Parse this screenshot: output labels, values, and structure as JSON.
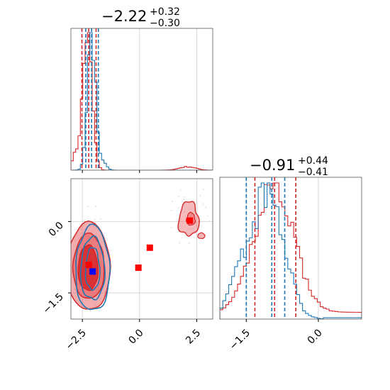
{
  "chart_data": {
    "type": "corner",
    "grid": true,
    "colors": {
      "red": "#d62728",
      "blue": "#1f77b4",
      "red_fill": "#e8686a",
      "marker_red": "#ff0000",
      "marker_blue": "#0000ff"
    },
    "params": [
      {
        "title_value": "−2.22",
        "title_plus": "+0.32",
        "title_minus": "−0.30",
        "range": [
          -3.0,
          3.2
        ]
      },
      {
        "title_value": "−0.91",
        "title_plus": "+0.44",
        "title_minus": "−0.41",
        "range": [
          -2.05,
          0.9
        ]
      }
    ],
    "x_ticks_p1": [
      {
        "v": -2.5,
        "label": "−2.5"
      },
      {
        "v": 0.0,
        "label": "0.0"
      },
      {
        "v": 2.5,
        "label": "2.5"
      }
    ],
    "y_ticks_p2": [
      {
        "v": 0.0,
        "label": "0.0"
      },
      {
        "v": -1.5,
        "label": "−1.5"
      }
    ],
    "x_ticks_p2": [
      {
        "v": -1.5,
        "label": "−1.5"
      },
      {
        "v": 0.0,
        "label": "0.0"
      }
    ],
    "hist1": {
      "red": {
        "median": -2.22,
        "lo": -2.52,
        "hi": -1.9
      },
      "blue": {
        "median": -2.22,
        "lo": -2.35,
        "hi": -1.8
      }
    },
    "hist2": {
      "red": {
        "median": -0.91,
        "lo": -1.32,
        "hi": -0.47
      },
      "blue": {
        "median": -0.91,
        "lo": -1.5,
        "hi": -0.7
      }
    },
    "markers_red": [
      {
        "x": -2.22,
        "y": -0.91
      },
      {
        "x": -0.05,
        "y": -0.97
      },
      {
        "x": 0.45,
        "y": -0.55
      },
      {
        "x": 2.2,
        "y": 0.02
      }
    ],
    "markers_blue": [
      {
        "x": -2.05,
        "y": -1.05
      }
    ]
  }
}
